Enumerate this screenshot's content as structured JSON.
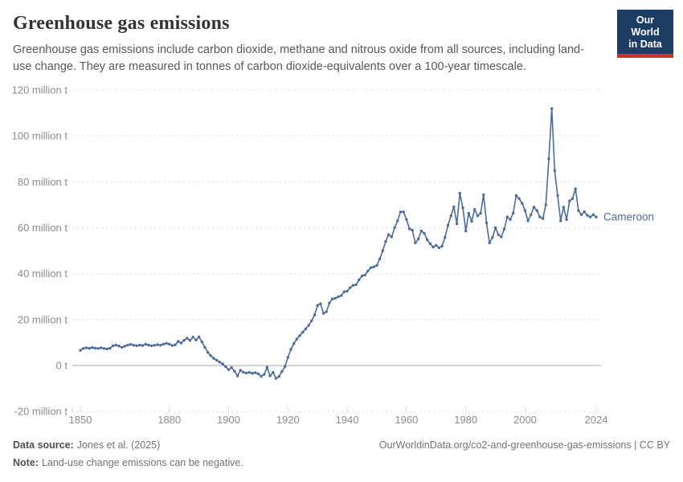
{
  "header": {
    "title": "Greenhouse gas emissions",
    "subtitle": "Greenhouse gas emissions include carbon dioxide, methane and nitrous oxide from all sources, including land-use change. They are measured in tonnes of carbon dioxide-equivalents over a 100-year timescale.",
    "logo": {
      "line1": "Our World",
      "line2": "in Data"
    }
  },
  "footer": {
    "source_label": "Data source:",
    "source_text": "Jones et al. (2025)",
    "link_text": "OurWorldinData.org/co2-and-greenhouse-gas-emissions | CC BY",
    "note_label": "Note:",
    "note_text": "Land-use change emissions can be negative."
  },
  "colors": {
    "line": "#4c6a9c",
    "entity_label": "#4c6a9c",
    "grid": "#d9d9d9",
    "zero_line": "#a3a3a3",
    "axis_text": "#8b8b8b",
    "logo_navy": "#1d3d63",
    "logo_red": "#c9352b"
  },
  "chart_data": {
    "type": "line",
    "title": "Greenhouse gas emissions",
    "xlabel": "",
    "ylabel": "",
    "xlim": [
      1850,
      2024
    ],
    "ylim": [
      -20,
      120
    ],
    "grid": "horizontal-dashed",
    "legend_position": "end-of-line-label",
    "x_ticks": [
      {
        "value": 1850,
        "label": "1850"
      },
      {
        "value": 1880,
        "label": "1880"
      },
      {
        "value": 1900,
        "label": "1900"
      },
      {
        "value": 1920,
        "label": "1920"
      },
      {
        "value": 1940,
        "label": "1940"
      },
      {
        "value": 1960,
        "label": "1960"
      },
      {
        "value": 1980,
        "label": "1980"
      },
      {
        "value": 2000,
        "label": "2000"
      },
      {
        "value": 2024,
        "label": "2024"
      }
    ],
    "y_ticks": [
      {
        "value": -20,
        "label": "-20 million t"
      },
      {
        "value": 0,
        "label": "0 t"
      },
      {
        "value": 20,
        "label": "20 million t"
      },
      {
        "value": 40,
        "label": "40 million t"
      },
      {
        "value": 60,
        "label": "60 million t"
      },
      {
        "value": 80,
        "label": "80 million t"
      },
      {
        "value": 100,
        "label": "100 million t"
      },
      {
        "value": 120,
        "label": "120 million t"
      }
    ],
    "series": [
      {
        "name": "Cameroon",
        "color": "#4c6a9c",
        "unit": "million t",
        "x": [
          1850,
          1851,
          1852,
          1853,
          1854,
          1855,
          1856,
          1857,
          1858,
          1859,
          1860,
          1861,
          1862,
          1863,
          1864,
          1865,
          1866,
          1867,
          1868,
          1869,
          1870,
          1871,
          1872,
          1873,
          1874,
          1875,
          1876,
          1877,
          1878,
          1879,
          1880,
          1881,
          1882,
          1883,
          1884,
          1885,
          1886,
          1887,
          1888,
          1889,
          1890,
          1891,
          1892,
          1893,
          1894,
          1895,
          1896,
          1897,
          1898,
          1899,
          1900,
          1901,
          1902,
          1903,
          1904,
          1905,
          1906,
          1907,
          1908,
          1909,
          1910,
          1911,
          1912,
          1913,
          1914,
          1915,
          1916,
          1917,
          1918,
          1919,
          1920,
          1921,
          1922,
          1923,
          1924,
          1925,
          1926,
          1927,
          1928,
          1929,
          1930,
          1931,
          1932,
          1933,
          1934,
          1935,
          1936,
          1937,
          1938,
          1939,
          1940,
          1941,
          1942,
          1943,
          1944,
          1945,
          1946,
          1947,
          1948,
          1949,
          1950,
          1951,
          1952,
          1953,
          1954,
          1955,
          1956,
          1957,
          1958,
          1959,
          1960,
          1961,
          1962,
          1963,
          1964,
          1965,
          1966,
          1967,
          1968,
          1969,
          1970,
          1971,
          1972,
          1973,
          1974,
          1975,
          1976,
          1977,
          1978,
          1979,
          1980,
          1981,
          1982,
          1983,
          1984,
          1985,
          1986,
          1987,
          1988,
          1989,
          1990,
          1991,
          1992,
          1993,
          1994,
          1995,
          1996,
          1997,
          1998,
          1999,
          2000,
          2001,
          2002,
          2003,
          2004,
          2005,
          2006,
          2007,
          2008,
          2009,
          2010,
          2011,
          2012,
          2013,
          2014,
          2015,
          2016,
          2017,
          2018,
          2019,
          2020,
          2021,
          2022,
          2023,
          2024
        ],
        "values": [
          6.6,
          7.4,
          7.7,
          7.5,
          7.8,
          7.6,
          7.4,
          7.7,
          7.4,
          7.2,
          7.5,
          8.6,
          8.9,
          8.5,
          7.9,
          8.4,
          8.9,
          9.2,
          8.8,
          8.6,
          8.9,
          8.7,
          9.3,
          8.9,
          8.6,
          8.8,
          9.1,
          8.8,
          9.3,
          9.7,
          9.3,
          8.7,
          9.0,
          10.5,
          9.8,
          11.0,
          11.9,
          10.9,
          12.4,
          11.1,
          12.5,
          10.3,
          7.9,
          5.7,
          4.3,
          3.1,
          2.3,
          1.5,
          0.7,
          -0.5,
          -1.8,
          -0.9,
          -2.5,
          -4.5,
          -2.1,
          -2.9,
          -3.3,
          -3.0,
          -3.4,
          -3.1,
          -3.6,
          -4.7,
          -3.9,
          -0.8,
          -4.5,
          -3.0,
          -5.6,
          -4.8,
          -2.6,
          -0.5,
          3.5,
          7.0,
          9.5,
          11.5,
          13.0,
          14.5,
          16.0,
          17.5,
          19.5,
          22.0,
          26.2,
          26.9,
          22.7,
          23.4,
          27.2,
          29.0,
          29.3,
          30.0,
          30.4,
          32.1,
          32.4,
          33.9,
          34.9,
          35.2,
          37.3,
          39.0,
          39.4,
          41.2,
          42.6,
          43.0,
          43.6,
          46.5,
          50.0,
          54.0,
          57.0,
          56.0,
          60.0,
          63.0,
          66.9,
          66.9,
          63.6,
          59.5,
          59.0,
          53.4,
          55.1,
          58.6,
          57.6,
          54.8,
          53.0,
          51.6,
          52.3,
          51.3,
          52.0,
          55.8,
          61.0,
          65.2,
          69.1,
          61.7,
          75.0,
          68.7,
          58.6,
          66.3,
          62.8,
          68.0,
          65.2,
          66.3,
          74.3,
          62.1,
          53.4,
          55.8,
          60.0,
          57.0,
          56.0,
          59.4,
          64.7,
          63.6,
          66.4,
          74.0,
          72.7,
          70.6,
          67.5,
          63.0,
          65.7,
          69.0,
          67.5,
          64.7,
          64.0,
          70.0,
          90.0,
          111.9,
          84.9,
          74.0,
          63.0,
          69.0,
          63.6,
          71.7,
          72.7,
          77.0,
          67.5,
          65.7,
          67.0,
          65.4,
          64.7,
          65.7,
          64.7
        ]
      }
    ]
  }
}
